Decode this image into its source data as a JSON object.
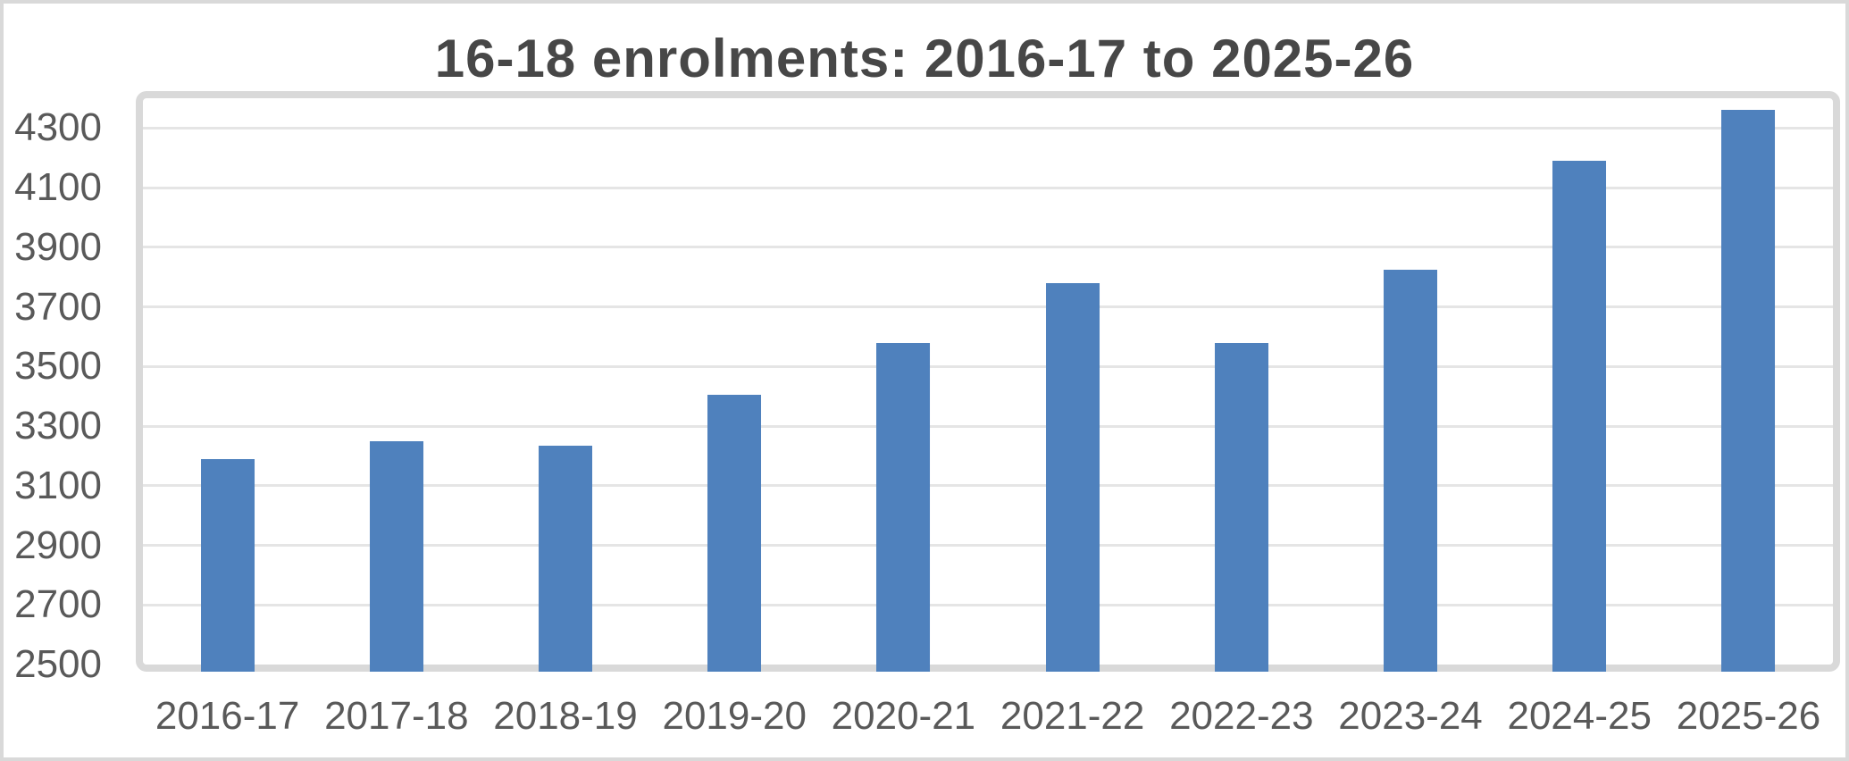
{
  "chart_data": {
    "type": "bar",
    "title": "16-18 enrolments: 2016-17 to 2025-26",
    "categories": [
      "2016-17",
      "2017-18",
      "2018-19",
      "2019-20",
      "2020-21",
      "2021-22",
      "2022-23",
      "2023-24",
      "2024-25",
      "2025-26"
    ],
    "values": [
      3190,
      3250,
      3235,
      3405,
      3580,
      3780,
      3580,
      3825,
      4190,
      4360
    ],
    "xlabel": "",
    "ylabel": "",
    "yticks": [
      2500,
      2700,
      2900,
      3100,
      3300,
      3500,
      3700,
      3900,
      4100,
      4300
    ],
    "ylim": [
      2500,
      4400
    ],
    "grid": true,
    "legend": false,
    "colors": {
      "bar": "#4F81BD",
      "plot_border": "#D9D9D9",
      "gridline": "#E5E5E5",
      "title_text": "#474747",
      "tick_text": "#595959",
      "background": "#FFFFFF"
    }
  }
}
